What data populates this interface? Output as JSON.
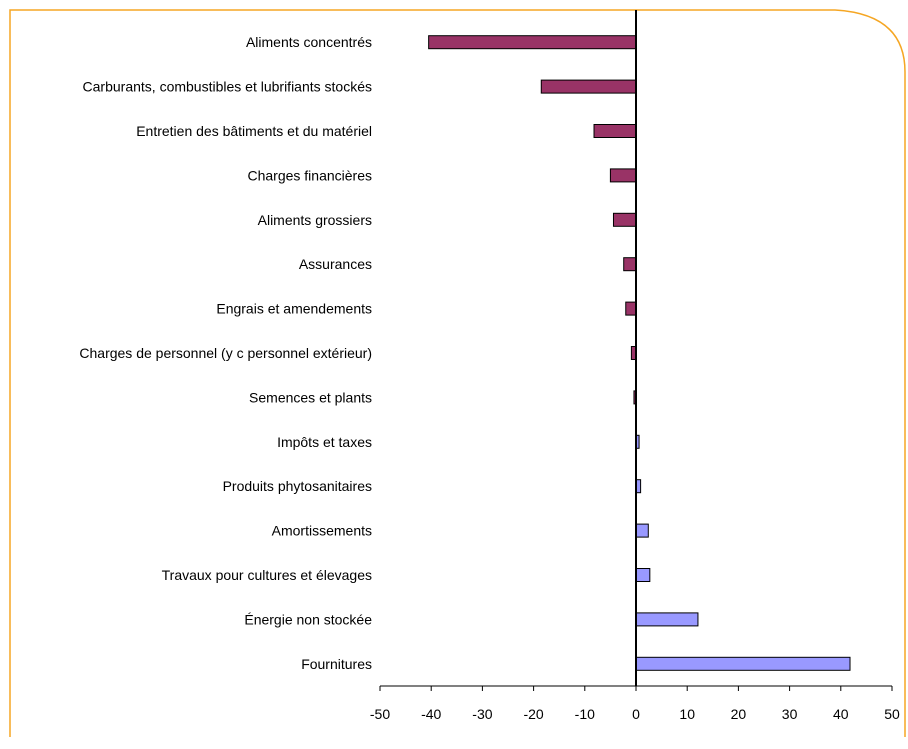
{
  "chart_data": {
    "type": "bar",
    "orientation": "horizontal",
    "categories": [
      "Aliments concentrés",
      "Carburants, combustibles et lubrifiants stockés",
      "Entretien des bâtiments et du matériel",
      "Charges financières",
      "Aliments grossiers",
      "Assurances",
      "Engrais et amendements",
      "Charges de personnel (y c personnel extérieur)",
      "Semences et plants",
      "Impôts et taxes",
      "Produits phytosanitaires",
      "Amortissements",
      "Travaux pour cultures et élevages",
      "Énergie non stockée",
      "Fournitures"
    ],
    "values": [
      -40.5,
      -18.5,
      -8.2,
      -5.0,
      -4.4,
      -2.4,
      -2.0,
      -0.9,
      -0.4,
      0.6,
      0.9,
      2.4,
      2.7,
      12.1,
      41.8
    ],
    "xlim": [
      -50,
      50
    ],
    "xticks": [
      -50,
      -40,
      -30,
      -20,
      -10,
      0,
      10,
      20,
      30,
      40,
      50
    ],
    "grid": false,
    "legend": false,
    "colors": {
      "negative": "#993366",
      "positive": "#9999FF",
      "frame": "#F5A623",
      "bar_outline": "#000000"
    }
  }
}
